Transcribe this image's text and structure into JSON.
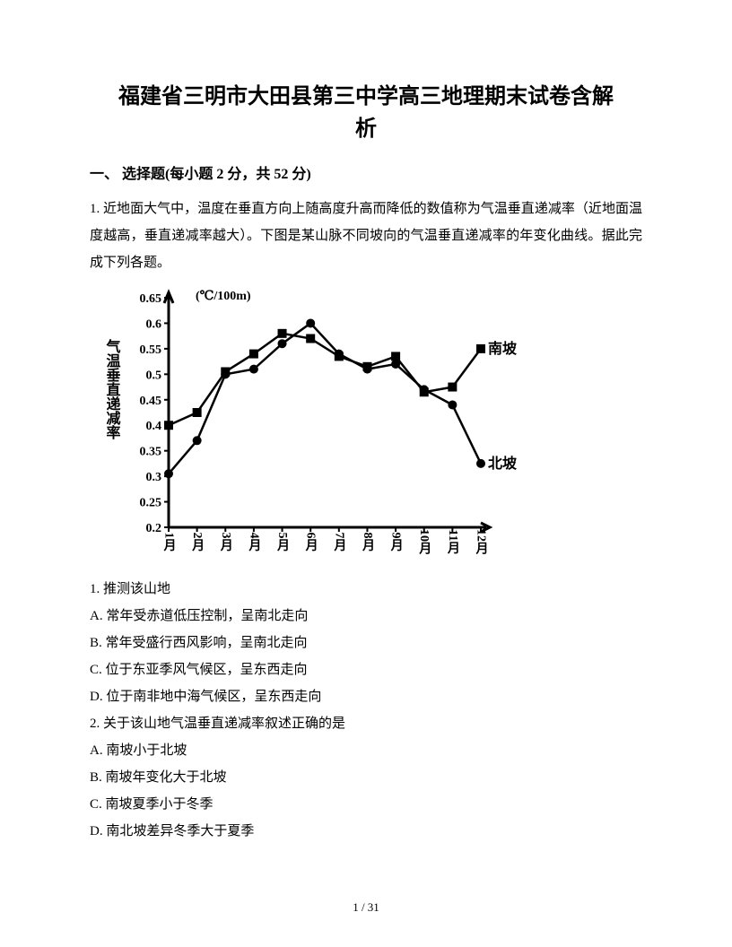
{
  "title_line1": "福建省三明市大田县第三中学高三地理期末试卷含解",
  "title_line2": "析",
  "section_heading": "一、 选择题(每小题 2 分，共 52 分)",
  "intro": "1. 近地面大气中，温度在垂直方向上随高度升高而降低的数值称为气温垂直递减率（近地面温度越高，垂直递减率越大）。下图是某山脉不同坡向的气温垂直递减率的年变化曲线。据此完成下列各题。",
  "chart": {
    "type": "line",
    "y_title": "气温垂直递减率",
    "unit_label": "(℃/100m)",
    "y_ticks": [
      0.2,
      0.25,
      0.3,
      0.35,
      0.4,
      0.45,
      0.5,
      0.55,
      0.6,
      0.65
    ],
    "y_tick_labels": [
      "0.2",
      "0.25",
      "0.3",
      "0.35",
      "0.4",
      "0.45",
      "0.5",
      "0.55",
      "0.6",
      "0.65"
    ],
    "ylim": [
      0.2,
      0.65
    ],
    "x_labels": [
      "1月",
      "2月",
      "3月",
      "4月",
      "5月",
      "6月",
      "7月",
      "8月",
      "9月",
      "10月",
      "11月",
      "12月"
    ],
    "series": [
      {
        "name": "南坡",
        "label": "南坡",
        "marker": "square",
        "values": [
          0.4,
          0.425,
          0.505,
          0.54,
          0.58,
          0.57,
          0.535,
          0.515,
          0.535,
          0.465,
          0.475,
          0.55
        ],
        "color": "#000000"
      },
      {
        "name": "北坡",
        "label": "北坡",
        "marker": "circle",
        "values": [
          0.305,
          0.37,
          0.5,
          0.51,
          0.56,
          0.6,
          0.54,
          0.51,
          0.52,
          0.47,
          0.44,
          0.325
        ],
        "color": "#000000"
      }
    ],
    "line_width": 2.5,
    "marker_size": 5,
    "axis_color": "#000000",
    "background_color": "#ffffff",
    "font_size_axis": 14,
    "font_size_label": 16
  },
  "q1": {
    "stem": "1. 推测该山地",
    "A": "A. 常年受赤道低压控制，呈南北走向",
    "B": "B. 常年受盛行西风影响，呈南北走向",
    "C": "C. 位于东亚季风气候区，呈东西走向",
    "D": "D. 位于南非地中海气候区，呈东西走向"
  },
  "q2": {
    "stem": "2. 关于该山地气温垂直递减率叙述正确的是",
    "A": "A. 南坡小于北坡",
    "B": "B. 南坡年变化大于北坡",
    "C": "C. 南坡夏季小于冬季",
    "D": "D. 南北坡差异冬季大于夏季"
  },
  "footer": "1 / 31"
}
